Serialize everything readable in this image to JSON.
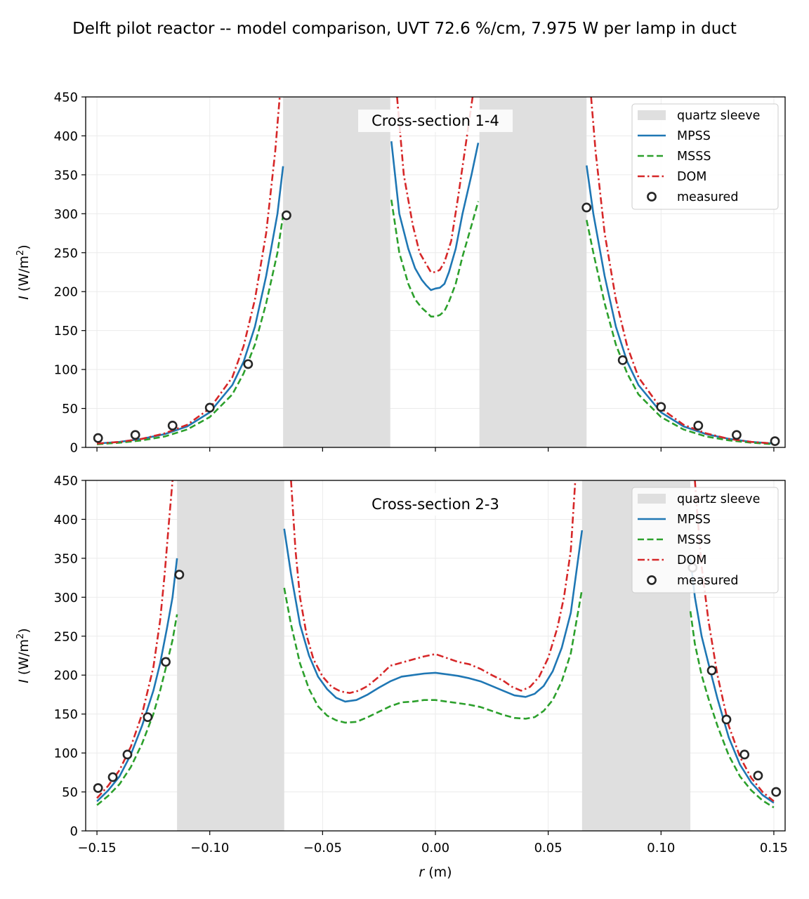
{
  "figure": {
    "title": "Delft pilot reactor -- model comparison, UVT 72.6 %/cm, 7.975 W per lamp in duct"
  },
  "colors": {
    "MPSS": "#1f77b4",
    "MSSS": "#2ca02c",
    "DOM": "#d62728",
    "measured": "#262626",
    "sleeve": "#dfdfdf",
    "grid": "#ebebeb"
  },
  "chart_data": [
    {
      "type": "line",
      "panel_title": "Cross-section 1-4",
      "xlabel": "",
      "ylabel_italic": "I",
      "ylabel_rest": " (W/m",
      "ylabel_sup": "2",
      "ylabel_close": ")",
      "xlim": [
        -0.155,
        0.155
      ],
      "ylim": [
        0,
        450
      ],
      "xticks": [
        -0.15,
        -0.1,
        -0.05,
        0.0,
        0.05,
        0.1,
        0.15
      ],
      "xtick_labels": [
        "−0.15",
        "−0.10",
        "−0.05",
        "0.00",
        "0.05",
        "0.10",
        "0.15"
      ],
      "show_xtick_labels": false,
      "yticks": [
        0,
        50,
        100,
        150,
        200,
        250,
        300,
        350,
        400,
        450
      ],
      "grid": true,
      "legend": {
        "position": "top-right",
        "entries": [
          "quartz sleeve",
          "MPSS",
          "MSSS",
          "DOM",
          "measured"
        ]
      },
      "shaded_regions": [
        [
          -0.0675,
          -0.02
        ],
        [
          0.0195,
          0.067
        ]
      ],
      "series": [
        {
          "name": "MPSS",
          "style": "solid",
          "segments": [
            {
              "x": [
                -0.15,
                -0.14,
                -0.13,
                -0.12,
                -0.11,
                -0.1,
                -0.09,
                -0.085,
                -0.08,
                -0.075,
                -0.07,
                -0.0675
              ],
              "y": [
                5,
                7,
                11,
                17,
                27,
                45,
                80,
                110,
                155,
                220,
                300,
                361
              ]
            },
            {
              "x": [
                -0.0195,
                -0.016,
                -0.012,
                -0.009,
                -0.006,
                -0.004,
                -0.002,
                0.0,
                0.002,
                0.004,
                0.006,
                0.009,
                0.012,
                0.016,
                0.019
              ],
              "y": [
                393,
                300,
                255,
                230,
                215,
                208,
                202,
                204,
                205,
                210,
                225,
                255,
                300,
                350,
                391
              ]
            },
            {
              "x": [
                0.067,
                0.07,
                0.075,
                0.08,
                0.085,
                0.09,
                0.1,
                0.11,
                0.12,
                0.13,
                0.14,
                0.15
              ],
              "y": [
                362,
                300,
                220,
                155,
                110,
                80,
                45,
                27,
                17,
                11,
                7,
                5
              ]
            }
          ]
        },
        {
          "name": "MSSS",
          "style": "dashed",
          "segments": [
            {
              "x": [
                -0.15,
                -0.14,
                -0.13,
                -0.12,
                -0.11,
                -0.1,
                -0.09,
                -0.085,
                -0.08,
                -0.075,
                -0.07,
                -0.0675
              ],
              "y": [
                4,
                6,
                9,
                14,
                23,
                39,
                68,
                95,
                132,
                185,
                250,
                298
              ]
            },
            {
              "x": [
                -0.0195,
                -0.016,
                -0.012,
                -0.009,
                -0.006,
                -0.004,
                -0.002,
                0.0,
                0.002,
                0.004,
                0.006,
                0.009,
                0.012,
                0.016,
                0.019
              ],
              "y": [
                318,
                250,
                210,
                190,
                179,
                174,
                168,
                168,
                170,
                175,
                187,
                210,
                245,
                285,
                316
              ]
            },
            {
              "x": [
                0.067,
                0.07,
                0.075,
                0.08,
                0.085,
                0.09,
                0.1,
                0.11,
                0.12,
                0.13,
                0.14,
                0.15
              ],
              "y": [
                292,
                250,
                185,
                132,
                95,
                68,
                39,
                23,
                14,
                9,
                6,
                4
              ]
            }
          ]
        },
        {
          "name": "DOM",
          "style": "dashdot",
          "segments": [
            {
              "x": [
                -0.15,
                -0.14,
                -0.13,
                -0.12,
                -0.11,
                -0.1,
                -0.09,
                -0.085,
                -0.08,
                -0.075,
                -0.071,
                -0.069
              ],
              "y": [
                5,
                7,
                11,
                18,
                29,
                50,
                90,
                130,
                190,
                275,
                380,
                450
              ]
            },
            {
              "x": [
                -0.017,
                -0.014,
                -0.01,
                -0.007,
                -0.004,
                -0.002,
                0.0,
                0.002,
                0.004,
                0.007,
                0.01,
                0.014,
                0.0165
              ],
              "y": [
                450,
                350,
                285,
                250,
                235,
                225,
                225,
                228,
                238,
                265,
                320,
                400,
                450
              ]
            },
            {
              "x": [
                0.069,
                0.071,
                0.075,
                0.08,
                0.085,
                0.09,
                0.1,
                0.11,
                0.12,
                0.13,
                0.14,
                0.15
              ],
              "y": [
                450,
                380,
                275,
                190,
                130,
                90,
                50,
                29,
                18,
                11,
                7,
                5
              ]
            }
          ]
        },
        {
          "name": "measured",
          "style": "markers",
          "x": [
            -0.1495,
            -0.133,
            -0.1165,
            -0.1,
            -0.083,
            -0.066,
            0.067,
            0.083,
            0.1,
            0.1165,
            0.1335,
            0.1505
          ],
          "y": [
            12,
            16,
            28,
            51,
            107,
            298,
            308,
            112,
            52,
            28,
            16,
            8
          ]
        }
      ]
    },
    {
      "type": "line",
      "panel_title": "Cross-section 2-3",
      "xlabel_italic": "r",
      "xlabel_rest": " (m)",
      "ylabel_italic": "I",
      "ylabel_rest": " (W/m",
      "ylabel_sup": "2",
      "ylabel_close": ")",
      "xlim": [
        -0.155,
        0.155
      ],
      "ylim": [
        0,
        450
      ],
      "xticks": [
        -0.15,
        -0.1,
        -0.05,
        0.0,
        0.05,
        0.1,
        0.15
      ],
      "xtick_labels": [
        "−0.15",
        "−0.10",
        "−0.05",
        "0.00",
        "0.05",
        "0.10",
        "0.15"
      ],
      "show_xtick_labels": true,
      "yticks": [
        0,
        50,
        100,
        150,
        200,
        250,
        300,
        350,
        400,
        450
      ],
      "grid": true,
      "legend": {
        "position": "top-right",
        "entries": [
          "quartz sleeve",
          "MPSS",
          "MSSS",
          "DOM",
          "measured"
        ]
      },
      "shaded_regions": [
        [
          -0.1145,
          -0.067
        ],
        [
          0.065,
          0.113
        ]
      ],
      "series": [
        {
          "name": "MPSS",
          "style": "solid",
          "segments": [
            {
              "x": [
                -0.15,
                -0.145,
                -0.14,
                -0.135,
                -0.13,
                -0.125,
                -0.122,
                -0.119,
                -0.1165,
                -0.1145
              ],
              "y": [
                38,
                52,
                70,
                98,
                135,
                180,
                215,
                260,
                300,
                350
              ]
            },
            {
              "x": [
                -0.067,
                -0.064,
                -0.06,
                -0.056,
                -0.052,
                -0.048,
                -0.044,
                -0.04,
                -0.035,
                -0.03,
                -0.025,
                -0.02,
                -0.015,
                -0.01,
                -0.005,
                0.0,
                0.005,
                0.01,
                0.015,
                0.02,
                0.025,
                0.03,
                0.035,
                0.04,
                0.044,
                0.048,
                0.052,
                0.056,
                0.06,
                0.065
              ],
              "y": [
                388,
                330,
                265,
                225,
                198,
                182,
                171,
                166,
                168,
                175,
                184,
                192,
                198,
                200,
                202,
                203,
                201,
                199,
                196,
                192,
                186,
                180,
                174,
                172,
                176,
                186,
                205,
                235,
                280,
                386
              ]
            },
            {
              "x": [
                0.113,
                0.115,
                0.118,
                0.121,
                0.125,
                0.13,
                0.135,
                0.14,
                0.145,
                0.15
              ],
              "y": [
                350,
                300,
                250,
                215,
                170,
                120,
                85,
                62,
                46,
                36
              ]
            }
          ]
        },
        {
          "name": "MSSS",
          "style": "dashed",
          "segments": [
            {
              "x": [
                -0.15,
                -0.145,
                -0.14,
                -0.135,
                -0.13,
                -0.125,
                -0.122,
                -0.119,
                -0.1165,
                -0.1145
              ],
              "y": [
                33,
                45,
                60,
                82,
                112,
                150,
                180,
                215,
                245,
                278
              ]
            },
            {
              "x": [
                -0.067,
                -0.064,
                -0.06,
                -0.056,
                -0.052,
                -0.048,
                -0.044,
                -0.04,
                -0.035,
                -0.03,
                -0.025,
                -0.02,
                -0.015,
                -0.01,
                -0.005,
                0.0,
                0.005,
                0.01,
                0.015,
                0.02,
                0.025,
                0.03,
                0.035,
                0.04,
                0.044,
                0.048,
                0.052,
                0.056,
                0.06,
                0.065
              ],
              "y": [
                312,
                265,
                215,
                182,
                160,
                148,
                142,
                139,
                140,
                146,
                153,
                160,
                165,
                166,
                168,
                168,
                166,
                164,
                162,
                159,
                154,
                149,
                145,
                144,
                146,
                154,
                168,
                192,
                228,
                310
              ]
            },
            {
              "x": [
                0.113,
                0.115,
                0.118,
                0.121,
                0.125,
                0.13,
                0.135,
                0.14,
                0.145,
                0.15
              ],
              "y": [
                282,
                240,
                200,
                170,
                135,
                97,
                70,
                52,
                39,
                30
              ]
            }
          ]
        },
        {
          "name": "DOM",
          "style": "dashdot",
          "segments": [
            {
              "x": [
                -0.15,
                -0.145,
                -0.14,
                -0.135,
                -0.13,
                -0.125,
                -0.122,
                -0.12,
                -0.118,
                -0.1165
              ],
              "y": [
                42,
                58,
                78,
                108,
                150,
                210,
                270,
                330,
                400,
                450
              ]
            },
            {
              "x": [
                -0.064,
                -0.062,
                -0.06,
                -0.057,
                -0.054,
                -0.05,
                -0.046,
                -0.042,
                -0.038,
                -0.034,
                -0.03,
                -0.025,
                -0.02,
                -0.015,
                -0.01,
                -0.005,
                0.0,
                0.005,
                0.01,
                0.015,
                0.02,
                0.025,
                0.03,
                0.034,
                0.038,
                0.042,
                0.046,
                0.05,
                0.054,
                0.057,
                0.06,
                0.062
              ],
              "y": [
                450,
                360,
                300,
                250,
                220,
                198,
                185,
                179,
                177,
                180,
                186,
                198,
                212,
                216,
                220,
                224,
                227,
                222,
                217,
                214,
                208,
                200,
                193,
                185,
                180,
                185,
                198,
                222,
                260,
                300,
                360,
                450
              ]
            },
            {
              "x": [
                0.115,
                0.116,
                0.118,
                0.121,
                0.125,
                0.13,
                0.135,
                0.14,
                0.145,
                0.15
              ],
              "y": [
                450,
                410,
                340,
                270,
                200,
                135,
                95,
                68,
                50,
                38
              ]
            }
          ]
        },
        {
          "name": "measured",
          "style": "markers",
          "x": [
            -0.1495,
            -0.143,
            -0.1365,
            -0.1275,
            -0.1195,
            -0.1135,
            0.114,
            0.1225,
            0.129,
            0.137,
            0.143,
            0.151
          ],
          "y": [
            55,
            69,
            98,
            146,
            217,
            329,
            338,
            206,
            143,
            98,
            71,
            50
          ]
        }
      ]
    }
  ]
}
